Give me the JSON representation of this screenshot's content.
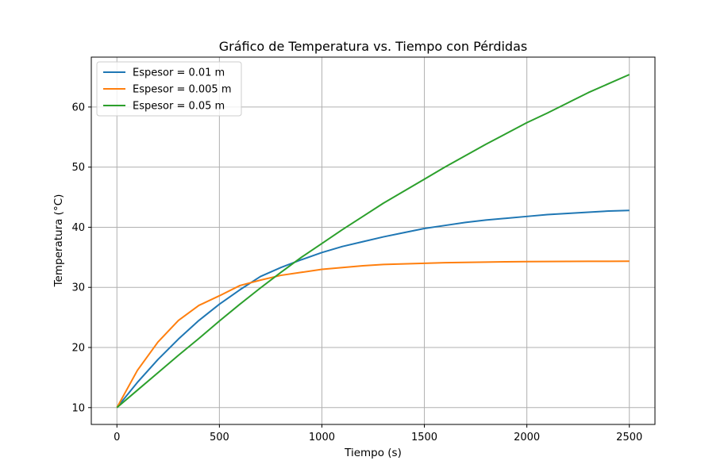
{
  "chart_data": {
    "type": "line",
    "title": "Gráfico de Temperatura vs. Tiempo con Pérdidas",
    "xlabel": "Tiempo (s)",
    "ylabel": "Temperatura (°C)",
    "xlim": [
      -125,
      2625
    ],
    "ylim": [
      7.2,
      68.3
    ],
    "xticks": [
      0,
      500,
      1000,
      1500,
      2000,
      2500
    ],
    "yticks": [
      10,
      20,
      30,
      40,
      50,
      60
    ],
    "grid": true,
    "legend_position": "top-left",
    "series": [
      {
        "name": "Espesor = 0.01 m",
        "color": "#1f77b4",
        "x": [
          0,
          100,
          200,
          300,
          400,
          500,
          600,
          700,
          800,
          900,
          1000,
          1100,
          1200,
          1300,
          1400,
          1500,
          1600,
          1700,
          1800,
          1900,
          2000,
          2100,
          2200,
          2300,
          2400,
          2500
        ],
        "y": [
          10.0,
          14.2,
          18.0,
          21.4,
          24.5,
          27.2,
          29.6,
          31.8,
          33.3,
          34.6,
          35.8,
          36.8,
          37.6,
          38.4,
          39.1,
          39.8,
          40.3,
          40.8,
          41.2,
          41.5,
          41.8,
          42.1,
          42.3,
          42.5,
          42.7,
          42.8
        ]
      },
      {
        "name": "Espesor = 0.005 m",
        "color": "#ff7f0e",
        "x": [
          0,
          100,
          200,
          300,
          400,
          500,
          600,
          700,
          800,
          900,
          1000,
          1100,
          1200,
          1300,
          1400,
          1500,
          1600,
          1700,
          1800,
          1900,
          2000,
          2100,
          2200,
          2300,
          2400,
          2500
        ],
        "y": [
          10.0,
          16.2,
          20.9,
          24.5,
          27.0,
          28.6,
          30.3,
          31.2,
          32.0,
          32.5,
          33.0,
          33.3,
          33.6,
          33.8,
          33.9,
          34.0,
          34.1,
          34.15,
          34.2,
          34.25,
          34.28,
          34.3,
          34.32,
          34.33,
          34.34,
          34.35
        ]
      },
      {
        "name": "Espesor = 0.05 m",
        "color": "#2ca02c",
        "x": [
          0,
          100,
          200,
          300,
          400,
          500,
          600,
          700,
          800,
          900,
          1000,
          1100,
          1200,
          1300,
          1400,
          1500,
          1600,
          1700,
          1800,
          1900,
          2000,
          2100,
          2200,
          2300,
          2400,
          2500
        ],
        "y": [
          10.0,
          12.9,
          15.8,
          18.7,
          21.5,
          24.4,
          27.2,
          29.9,
          32.5,
          35.0,
          37.3,
          39.6,
          41.8,
          44.0,
          46.0,
          48.0,
          50.0,
          51.9,
          53.8,
          55.6,
          57.4,
          59.0,
          60.7,
          62.4,
          63.9,
          65.4
        ]
      }
    ]
  }
}
